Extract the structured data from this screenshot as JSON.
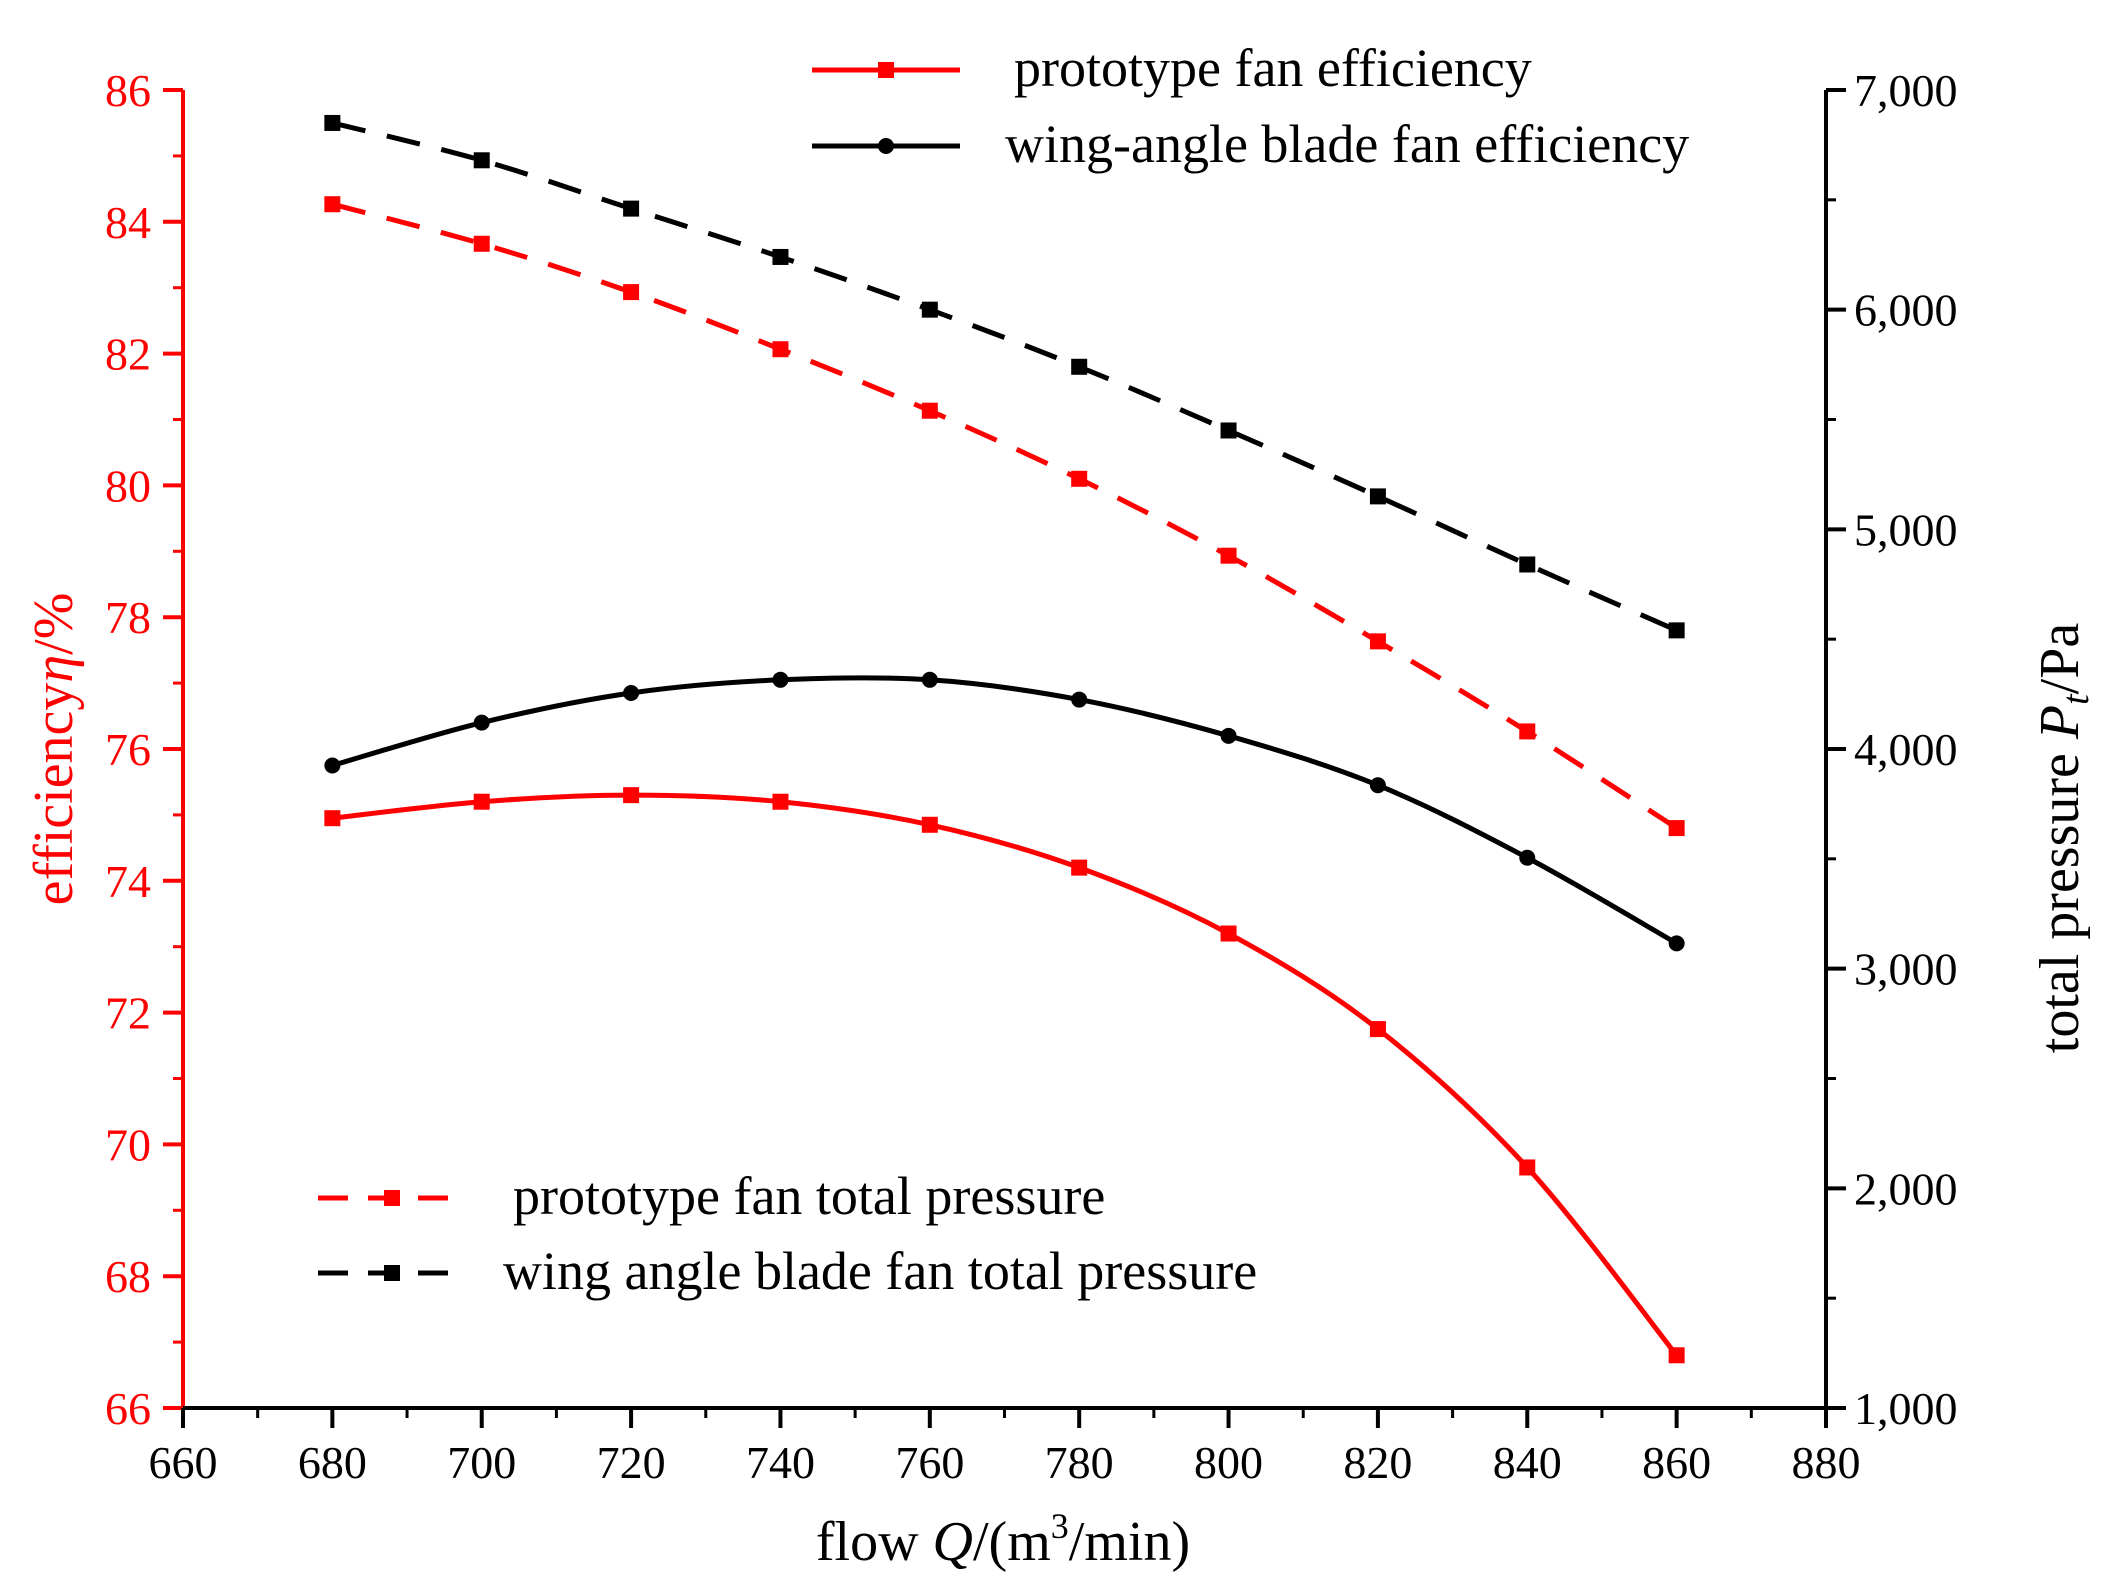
{
  "chart_data": {
    "type": "line",
    "x": [
      680,
      700,
      720,
      740,
      760,
      780,
      800,
      820,
      840,
      860
    ],
    "xlabel": {
      "prefix": "flow ",
      "var": "Q",
      "unit_open": "/(m",
      "sup": "3",
      "unit_close": "/min)"
    },
    "xlim": [
      660,
      880
    ],
    "xticks": [
      660,
      680,
      700,
      720,
      740,
      760,
      780,
      800,
      820,
      840,
      860,
      880
    ],
    "y_left": {
      "label_prefix": "efficiency",
      "label_var": "η",
      "label_unit": "/%",
      "range": [
        66,
        86
      ],
      "ticks": [
        66,
        68,
        70,
        72,
        74,
        76,
        78,
        80,
        82,
        84,
        86
      ],
      "color": "#ff0000"
    },
    "y_right": {
      "label_prefix": "total pressure ",
      "label_var": "P",
      "label_sub": "t",
      "label_unit": "/Pa",
      "range": [
        1000,
        7000
      ],
      "ticks": [
        "1,000",
        "2,000",
        "3,000",
        "4,000",
        "5,000",
        "6,000",
        "7,000"
      ],
      "tick_values": [
        1000,
        2000,
        3000,
        4000,
        5000,
        6000,
        7000
      ],
      "color": "#000000"
    },
    "series": [
      {
        "name": "prototype fan efficiency",
        "axis": "left",
        "color": "#ff0000",
        "dash": "solid",
        "marker": "square",
        "values": [
          74.95,
          75.2,
          75.3,
          75.2,
          74.85,
          74.2,
          73.2,
          71.75,
          69.65,
          66.8
        ]
      },
      {
        "name": "wing-angle blade fan efficiency",
        "axis": "left",
        "color": "#000000",
        "dash": "solid",
        "marker": "circle",
        "values": [
          75.75,
          76.4,
          76.85,
          77.05,
          77.05,
          76.75,
          76.2,
          75.45,
          74.35,
          73.05
        ]
      },
      {
        "name": "prototype fan total pressure",
        "axis": "right",
        "color": "#ff0000",
        "dash": "dashed",
        "marker": "square",
        "values": [
          6480,
          6300,
          6080,
          5820,
          5540,
          5230,
          4880,
          4490,
          4080,
          3640
        ]
      },
      {
        "name": "wing angle blade fan total pressure",
        "axis": "right",
        "color": "#000000",
        "dash": "dashed",
        "marker": "square",
        "values": [
          6850,
          6680,
          6460,
          6240,
          6000,
          5740,
          5450,
          5150,
          4840,
          4540
        ]
      }
    ],
    "legend_top": [
      "prototype fan efficiency",
      "wing-angle blade fan efficiency"
    ],
    "legend_bottom": [
      "prototype fan total pressure",
      "wing angle blade fan total pressure"
    ]
  }
}
